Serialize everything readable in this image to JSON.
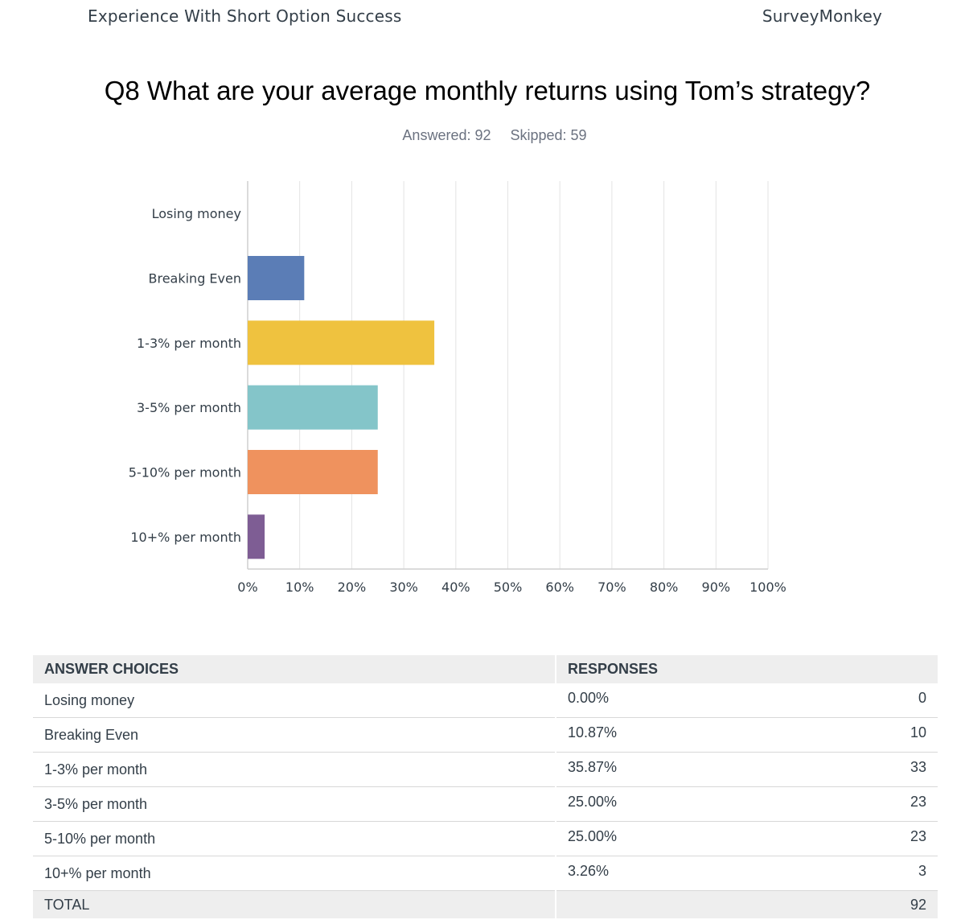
{
  "header": {
    "survey_title": "Experience With Short Option Success",
    "brand": "SurveyMonkey"
  },
  "question": {
    "title": "Q8 What are your average monthly returns using Tom’s strategy?",
    "answered": "Answered: 92",
    "skipped": "Skipped: 59"
  },
  "chart_data": {
    "type": "bar",
    "orientation": "horizontal",
    "categories": [
      "Losing money",
      "Breaking Even",
      "1-3% per month",
      "3-5% per month",
      "5-10% per month",
      "10+% per month"
    ],
    "values": [
      0.0,
      10.87,
      35.87,
      25.0,
      25.0,
      3.26
    ],
    "colors": [
      "#5b7db6",
      "#5b7db6",
      "#efc23f",
      "#84c5c9",
      "#ef925e",
      "#7e5d94"
    ],
    "xlim": [
      0,
      100
    ],
    "xticks": [
      "0%",
      "10%",
      "20%",
      "30%",
      "40%",
      "50%",
      "60%",
      "70%",
      "80%",
      "90%",
      "100%"
    ],
    "grid": true
  },
  "table": {
    "headers": {
      "choices": "ANSWER CHOICES",
      "responses": "RESPONSES"
    },
    "rows": [
      {
        "choice": "Losing money",
        "percent": "0.00%",
        "count": "0"
      },
      {
        "choice": "Breaking Even",
        "percent": "10.87%",
        "count": "10"
      },
      {
        "choice": "1-3% per month",
        "percent": "35.87%",
        "count": "33"
      },
      {
        "choice": "3-5% per month",
        "percent": "25.00%",
        "count": "23"
      },
      {
        "choice": "5-10% per month",
        "percent": "25.00%",
        "count": "23"
      },
      {
        "choice": "10+% per month",
        "percent": "3.26%",
        "count": "3"
      }
    ],
    "total_label": "TOTAL",
    "total_count": "92"
  }
}
